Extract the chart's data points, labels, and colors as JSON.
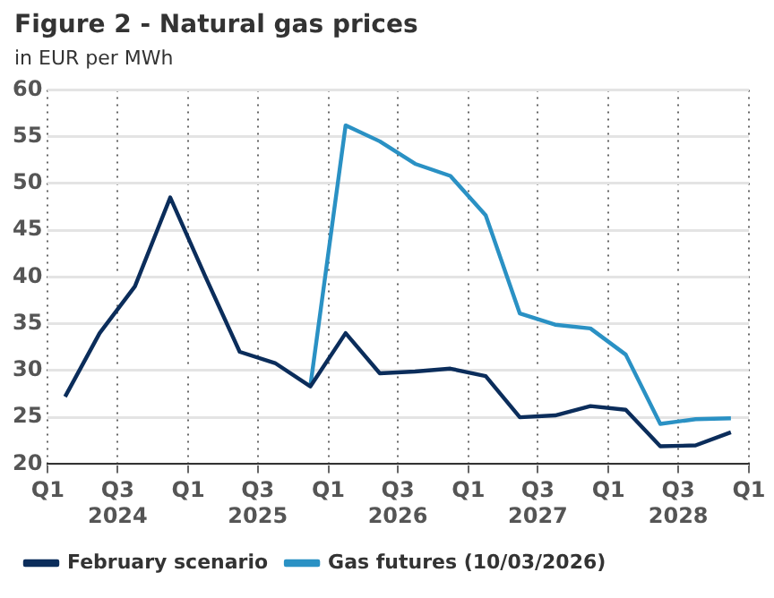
{
  "chart_data": {
    "type": "line",
    "title": "Figure 2 - Natural gas prices",
    "subtitle": "in EUR per MWh",
    "x": [
      "2024-02-15",
      "2024-05-15",
      "2024-08-15",
      "2024-11-15",
      "2025-02-15",
      "2025-05-15",
      "2025-08-15",
      "2025-11-15",
      "2026-02-15",
      "2026-05-15",
      "2026-08-15",
      "2026-11-15",
      "2027-02-15",
      "2027-05-15",
      "2027-08-15",
      "2027-11-15",
      "2028-02-15",
      "2028-05-15",
      "2028-08-15",
      "2028-11-15"
    ],
    "series": [
      {
        "name": "February scenario",
        "color": "#0b2d5b",
        "values": [
          27.2,
          34,
          39,
          48.5,
          40,
          32,
          30.8,
          28.3,
          34,
          29.7,
          29.9,
          30.2,
          29.4,
          25,
          25.2,
          26.2,
          25.8,
          21.9,
          22,
          23.4
        ]
      },
      {
        "name": "Gas futures (10/03/2026)",
        "color": "#2a91c4",
        "values": [
          null,
          null,
          null,
          null,
          null,
          null,
          null,
          28.3,
          56.2,
          54.5,
          52.1,
          50.8,
          46.6,
          36.1,
          34.9,
          34.5,
          31.7,
          24.3,
          24.8,
          24.9
        ]
      }
    ],
    "xlim": [
      "2024-01-01",
      "2029-01-01"
    ],
    "xticks": [
      {
        "value": "2024-01-01",
        "label": "Q1"
      },
      {
        "value": "2024-07-01",
        "label": "Q3\n2024"
      },
      {
        "value": "2025-01-01",
        "label": "Q1"
      },
      {
        "value": "2025-07-01",
        "label": "Q3\n2025"
      },
      {
        "value": "2026-01-01",
        "label": "Q1"
      },
      {
        "value": "2026-07-01",
        "label": "Q3\n2026"
      },
      {
        "value": "2027-01-01",
        "label": "Q1"
      },
      {
        "value": "2027-07-01",
        "label": "Q3\n2027"
      },
      {
        "value": "2028-01-01",
        "label": "Q1"
      },
      {
        "value": "2028-07-01",
        "label": "Q3\n2028"
      },
      {
        "value": "2029-01-01",
        "label": "Q1"
      }
    ],
    "ylim": [
      20,
      60
    ],
    "yticks": [
      20,
      25,
      30,
      35,
      40,
      45,
      50,
      55,
      60
    ],
    "grid": true,
    "legend": "bottom",
    "marker": "none",
    "line_style": "solid"
  }
}
